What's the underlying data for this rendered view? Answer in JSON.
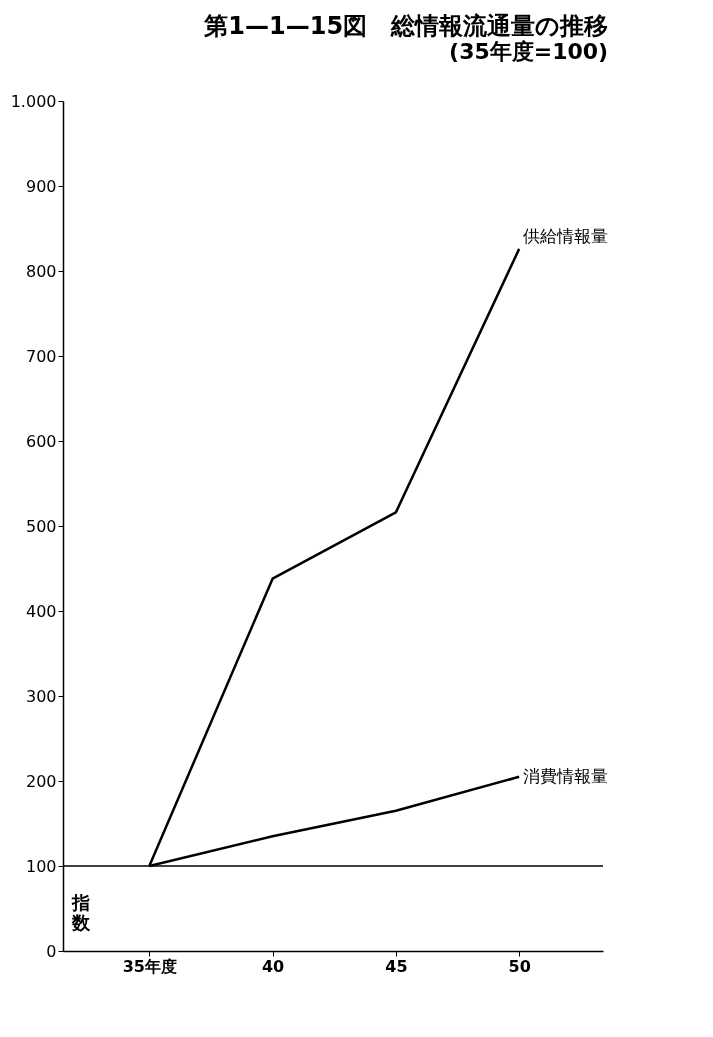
{
  "chart_data": {
    "type": "line",
    "title": "第1—1—15図　総情報流通量の推移",
    "subtitle": "(35年度=100)",
    "ylabel": "指数",
    "x": [
      35,
      40,
      45,
      50
    ],
    "series": [
      {
        "name": "供給情報量",
        "color": "#000000",
        "values": [
          100,
          438,
          516,
          826
        ]
      },
      {
        "name": "消費情報量",
        "color": "#000000",
        "values": [
          100,
          135,
          165,
          205
        ]
      }
    ],
    "xlim": [
      31.5,
      53.4
    ],
    "xticks": [
      {
        "value": 35,
        "label": "35年度"
      },
      40,
      45,
      50
    ],
    "ylim": [
      0,
      1000
    ],
    "yticks": [
      0,
      100,
      200,
      300,
      400,
      500,
      600,
      700,
      800,
      900,
      {
        "value": 1000,
        "label": "1.000"
      }
    ],
    "ref_lines": [
      {
        "axis": "y",
        "value": 100,
        "color": "#000000"
      }
    ],
    "grid": false,
    "legend": false,
    "marker": "none",
    "line_style": "solid"
  }
}
